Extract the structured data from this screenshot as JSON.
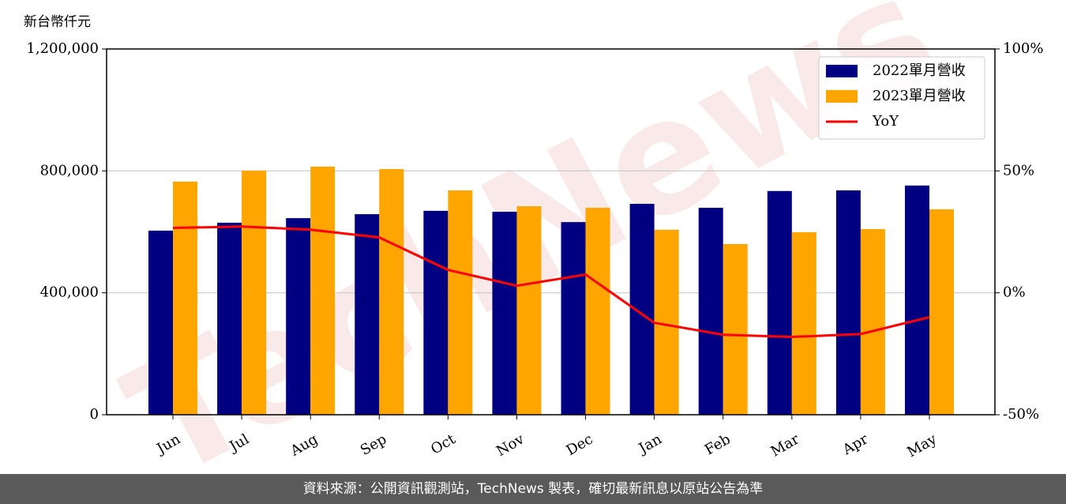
{
  "chart_data": {
    "type": "bar",
    "y_unit_label": "新台幣仟元",
    "watermark": "TechNews",
    "footer": "資料來源：公開資訊觀測站，TechNews 製表，確切最新訊息以原站公告為準",
    "categories": [
      "Jun",
      "Jul",
      "Aug",
      "Sep",
      "Oct",
      "Nov",
      "Dec",
      "Jan",
      "Feb",
      "Mar",
      "Apr",
      "May"
    ],
    "series": [
      {
        "name": "2022單月營收",
        "type": "bar",
        "color": "#000080",
        "values": [
          604000,
          630000,
          645000,
          658000,
          669000,
          666000,
          632000,
          692000,
          679000,
          734000,
          736000,
          752000
        ]
      },
      {
        "name": "2023單月營收",
        "type": "bar",
        "color": "#ffa500",
        "values": [
          765000,
          801000,
          814000,
          806000,
          736000,
          684000,
          679000,
          607000,
          560000,
          599000,
          609000,
          674000
        ]
      },
      {
        "name": "YoY",
        "type": "line",
        "axis": "y2",
        "color": "#ff0000",
        "values": [
          26.6,
          27.2,
          25.9,
          22.7,
          9.4,
          2.9,
          7.5,
          -12.3,
          -17.2,
          -18.1,
          -16.9,
          -10.0
        ]
      }
    ],
    "ylim": [
      0,
      1200000
    ],
    "yticks": [
      0,
      {
        "value": 400000,
        "label": "400,000"
      },
      {
        "value": 800000,
        "label": "800,000"
      },
      {
        "value": 1200000,
        "label": "1,200,000"
      }
    ],
    "y2lim": [
      -50,
      100
    ],
    "y2ticks": [
      {
        "value": -50,
        "label": "-50%"
      },
      {
        "value": 0,
        "label": "0%"
      },
      {
        "value": 50,
        "label": "50%"
      },
      {
        "value": 100,
        "label": "100%"
      }
    ],
    "grid": true,
    "legend": "upper right"
  }
}
